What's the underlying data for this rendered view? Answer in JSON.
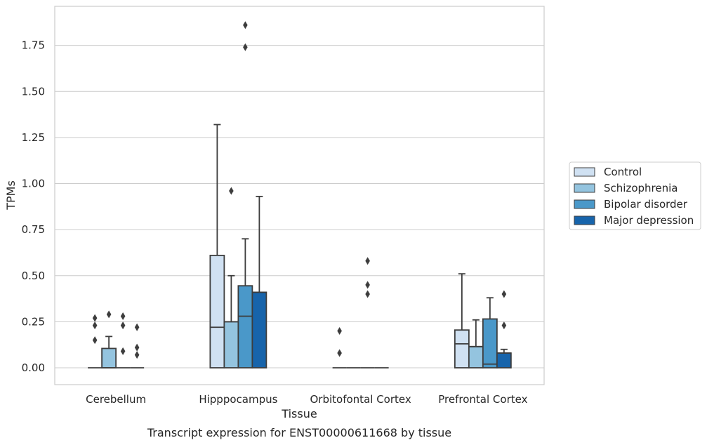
{
  "caption": "Transcript expression for ENST00000611668 by tissue",
  "chart_data": {
    "type": "boxplot",
    "xlabel": "Tissue",
    "ylabel": "TPMs",
    "ylim": [
      -0.09,
      1.96
    ],
    "yticks": [
      0.0,
      0.25,
      0.5,
      0.75,
      1.0,
      1.25,
      1.5,
      1.75
    ],
    "ytick_labels": [
      "0.00",
      "0.25",
      "0.50",
      "0.75",
      "1.00",
      "1.25",
      "1.50",
      "1.75"
    ],
    "grid": "horizontal",
    "legend_position": "right",
    "categories": [
      "Cerebellum",
      "Hipppocampus",
      "Orbitofontal Cortex",
      "Prefrontal Cortex"
    ],
    "series": [
      {
        "name": "Control",
        "color": "#d0e1f2",
        "boxes": [
          {
            "whislo": 0,
            "q1": 0,
            "med": 0,
            "q3": 0,
            "whishi": 0,
            "fliers": [
              0.15,
              0.23,
              0.27
            ]
          },
          {
            "whislo": 0,
            "q1": 0,
            "med": 0.22,
            "q3": 0.61,
            "whishi": 1.32,
            "fliers": []
          },
          {
            "whislo": 0,
            "q1": 0,
            "med": 0,
            "q3": 0,
            "whishi": 0,
            "fliers": [
              0.08,
              0.2
            ]
          },
          {
            "whislo": 0,
            "q1": 0,
            "med": 0.13,
            "q3": 0.205,
            "whishi": 0.51,
            "fliers": []
          }
        ]
      },
      {
        "name": "Schizophrenia",
        "color": "#94c4df",
        "boxes": [
          {
            "whislo": 0,
            "q1": 0,
            "med": 0,
            "q3": 0.105,
            "whishi": 0.17,
            "fliers": [
              0.29
            ]
          },
          {
            "whislo": 0,
            "q1": 0,
            "med": 0.25,
            "q3": 0.25,
            "whishi": 0.5,
            "fliers": [
              0.96
            ]
          },
          {
            "whislo": 0,
            "q1": 0,
            "med": 0,
            "q3": 0,
            "whishi": 0,
            "fliers": []
          },
          {
            "whislo": 0,
            "q1": 0,
            "med": 0.115,
            "q3": 0.115,
            "whishi": 0.26,
            "fliers": []
          }
        ]
      },
      {
        "name": "Bipolar disorder",
        "color": "#4a98c9",
        "boxes": [
          {
            "whislo": 0,
            "q1": 0,
            "med": 0,
            "q3": 0,
            "whishi": 0,
            "fliers": [
              0.09,
              0.23,
              0.28
            ]
          },
          {
            "whislo": 0,
            "q1": 0,
            "med": 0.28,
            "q3": 0.445,
            "whishi": 0.7,
            "fliers": [
              1.74,
              1.86
            ]
          },
          {
            "whislo": 0,
            "q1": 0,
            "med": 0,
            "q3": 0,
            "whishi": 0,
            "fliers": [
              0.4,
              0.45,
              0.58
            ]
          },
          {
            "whislo": 0,
            "q1": 0,
            "med": 0.02,
            "q3": 0.265,
            "whishi": 0.38,
            "fliers": []
          }
        ]
      },
      {
        "name": "Major depression",
        "color": "#1764ab",
        "boxes": [
          {
            "whislo": 0,
            "q1": 0,
            "med": 0,
            "q3": 0,
            "whishi": 0,
            "fliers": [
              0.07,
              0.11,
              0.22
            ]
          },
          {
            "whislo": 0,
            "q1": 0,
            "med": 0.41,
            "q3": 0.41,
            "whishi": 0.93,
            "fliers": []
          },
          {
            "whislo": 0,
            "q1": 0,
            "med": 0,
            "q3": 0,
            "whishi": 0,
            "fliers": []
          },
          {
            "whislo": 0,
            "q1": 0,
            "med": 0.08,
            "q3": 0.08,
            "whishi": 0.1,
            "fliers": [
              0.23,
              0.4
            ]
          }
        ]
      }
    ]
  }
}
